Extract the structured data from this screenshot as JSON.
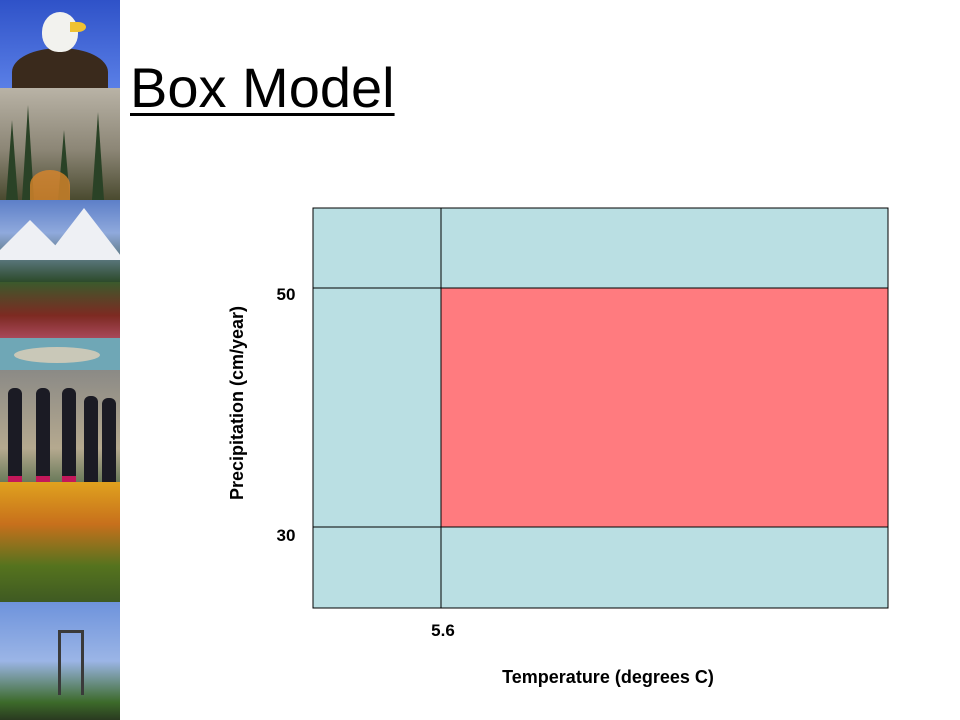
{
  "title": "Box Model",
  "diagram": {
    "tick_labels": {
      "y_upper": "50",
      "y_lower": "30",
      "x_left": "5.6"
    },
    "x_axis_label": "Temperature (degrees C)",
    "y_axis_label": "Precipitation (cm/year)",
    "colors": {
      "outer_region": "#badfe3",
      "inner_box": "#ff7b7f",
      "border": "#000000"
    }
  }
}
